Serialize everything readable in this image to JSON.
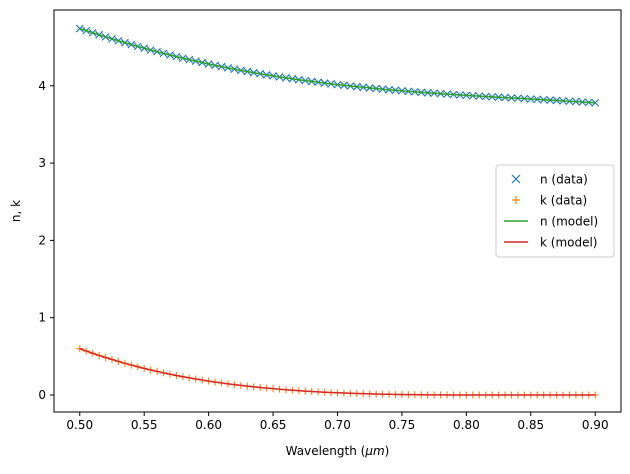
{
  "chart_data": {
    "type": "line",
    "title": "",
    "xlabel_prefix": "Wavelength (",
    "xlabel_unit": "μm",
    "xlabel_suffix": ")",
    "ylabel": "n, k",
    "xlim": [
      0.48,
      0.92
    ],
    "ylim": [
      -0.22,
      4.98
    ],
    "xticks": [
      0.5,
      0.55,
      0.6,
      0.65,
      0.7,
      0.75,
      0.8,
      0.85,
      0.9
    ],
    "xtick_labels": [
      "0.50",
      "0.55",
      "0.60",
      "0.65",
      "0.70",
      "0.75",
      "0.80",
      "0.85",
      "0.90"
    ],
    "yticks": [
      0,
      1,
      2,
      3,
      4
    ],
    "ytick_labels": [
      "0",
      "1",
      "2",
      "3",
      "4"
    ],
    "grid": false,
    "legend_position": "center-right",
    "x": [
      0.5,
      0.505,
      0.51,
      0.515,
      0.52,
      0.525,
      0.53,
      0.535,
      0.54,
      0.545,
      0.55,
      0.555,
      0.56,
      0.565,
      0.57,
      0.575,
      0.58,
      0.585,
      0.59,
      0.595,
      0.6,
      0.605,
      0.61,
      0.615,
      0.62,
      0.625,
      0.63,
      0.635,
      0.64,
      0.645,
      0.65,
      0.655,
      0.66,
      0.665,
      0.67,
      0.675,
      0.68,
      0.685,
      0.69,
      0.695,
      0.7,
      0.705,
      0.71,
      0.715,
      0.72,
      0.725,
      0.73,
      0.735,
      0.74,
      0.745,
      0.75,
      0.755,
      0.76,
      0.765,
      0.77,
      0.775,
      0.78,
      0.785,
      0.79,
      0.795,
      0.8,
      0.805,
      0.81,
      0.815,
      0.82,
      0.825,
      0.83,
      0.835,
      0.84,
      0.845,
      0.85,
      0.855,
      0.86,
      0.865,
      0.87,
      0.875,
      0.88,
      0.885,
      0.89,
      0.895,
      0.9
    ],
    "series": [
      {
        "name": "n (data)",
        "kind": "marker",
        "marker": "x",
        "color": "#1f77b4",
        "values": [
          4.74,
          4.713,
          4.686,
          4.659,
          4.633,
          4.607,
          4.582,
          4.557,
          4.533,
          4.509,
          4.486,
          4.463,
          4.441,
          4.419,
          4.398,
          4.377,
          4.357,
          4.338,
          4.319,
          4.3,
          4.282,
          4.264,
          4.247,
          4.231,
          4.215,
          4.199,
          4.184,
          4.169,
          4.155,
          4.141,
          4.128,
          4.115,
          4.102,
          4.09,
          4.078,
          4.067,
          4.056,
          4.045,
          4.035,
          4.025,
          4.015,
          4.006,
          3.997,
          3.988,
          3.98,
          3.972,
          3.964,
          3.956,
          3.949,
          3.942,
          3.935,
          3.928,
          3.922,
          3.915,
          3.909,
          3.903,
          3.898,
          3.892,
          3.887,
          3.881,
          3.876,
          3.871,
          3.866,
          3.861,
          3.856,
          3.852,
          3.847,
          3.842,
          3.838,
          3.833,
          3.829,
          3.824,
          3.819,
          3.815,
          3.81,
          3.805,
          3.8,
          3.795,
          3.79,
          3.785,
          3.78
        ]
      },
      {
        "name": "k (data)",
        "kind": "marker",
        "marker": "+",
        "color": "#ff7f0e",
        "values": [
          0.6,
          0.569,
          0.54,
          0.512,
          0.485,
          0.459,
          0.434,
          0.41,
          0.387,
          0.365,
          0.344,
          0.324,
          0.305,
          0.286,
          0.269,
          0.252,
          0.236,
          0.221,
          0.207,
          0.193,
          0.18,
          0.167,
          0.156,
          0.144,
          0.134,
          0.124,
          0.114,
          0.105,
          0.097,
          0.089,
          0.082,
          0.075,
          0.068,
          0.062,
          0.056,
          0.05,
          0.045,
          0.041,
          0.036,
          0.032,
          0.029,
          0.025,
          0.022,
          0.019,
          0.017,
          0.014,
          0.012,
          0.01,
          0.009,
          0.007,
          0.006,
          0.005,
          0.004,
          0.003,
          0.002,
          0.001,
          0.001,
          0.0,
          0.0,
          0.0,
          0.0,
          0.0,
          0.0,
          0.0,
          0.0,
          0.0,
          0.0,
          0.0,
          0.0,
          0.0,
          0.0,
          0.0,
          0.0,
          0.0,
          0.0,
          0.0,
          0.0,
          0.0,
          0.0,
          0.0,
          0.0
        ]
      },
      {
        "name": "n (model)",
        "kind": "line",
        "color": "#2ca02c",
        "values": [
          4.74,
          4.713,
          4.686,
          4.659,
          4.633,
          4.607,
          4.582,
          4.557,
          4.533,
          4.509,
          4.486,
          4.463,
          4.441,
          4.419,
          4.398,
          4.377,
          4.357,
          4.338,
          4.319,
          4.3,
          4.282,
          4.264,
          4.247,
          4.231,
          4.215,
          4.199,
          4.184,
          4.169,
          4.155,
          4.141,
          4.128,
          4.115,
          4.102,
          4.09,
          4.078,
          4.067,
          4.056,
          4.045,
          4.035,
          4.025,
          4.015,
          4.006,
          3.997,
          3.988,
          3.98,
          3.972,
          3.964,
          3.956,
          3.949,
          3.942,
          3.935,
          3.928,
          3.922,
          3.915,
          3.909,
          3.903,
          3.898,
          3.892,
          3.887,
          3.881,
          3.876,
          3.871,
          3.866,
          3.861,
          3.856,
          3.852,
          3.847,
          3.842,
          3.838,
          3.833,
          3.829,
          3.824,
          3.819,
          3.815,
          3.81,
          3.805,
          3.8,
          3.795,
          3.79,
          3.785,
          3.78
        ]
      },
      {
        "name": "k (model)",
        "kind": "line",
        "color": "#d62728",
        "values": [
          0.6,
          0.569,
          0.54,
          0.512,
          0.485,
          0.459,
          0.434,
          0.41,
          0.387,
          0.365,
          0.344,
          0.324,
          0.305,
          0.286,
          0.269,
          0.252,
          0.236,
          0.221,
          0.207,
          0.193,
          0.18,
          0.167,
          0.156,
          0.144,
          0.134,
          0.124,
          0.114,
          0.105,
          0.097,
          0.089,
          0.082,
          0.075,
          0.068,
          0.062,
          0.056,
          0.05,
          0.045,
          0.041,
          0.036,
          0.032,
          0.029,
          0.025,
          0.022,
          0.019,
          0.017,
          0.014,
          0.012,
          0.01,
          0.009,
          0.007,
          0.006,
          0.005,
          0.004,
          0.003,
          0.002,
          0.001,
          0.001,
          0.0,
          0.0,
          0.0,
          0.0,
          0.0,
          0.0,
          0.0,
          0.0,
          0.0,
          0.0,
          0.0,
          0.0,
          0.0,
          0.0,
          0.0,
          0.0,
          0.0,
          0.0,
          0.0,
          0.0,
          0.0,
          0.0,
          0.0,
          0.0
        ]
      }
    ]
  }
}
